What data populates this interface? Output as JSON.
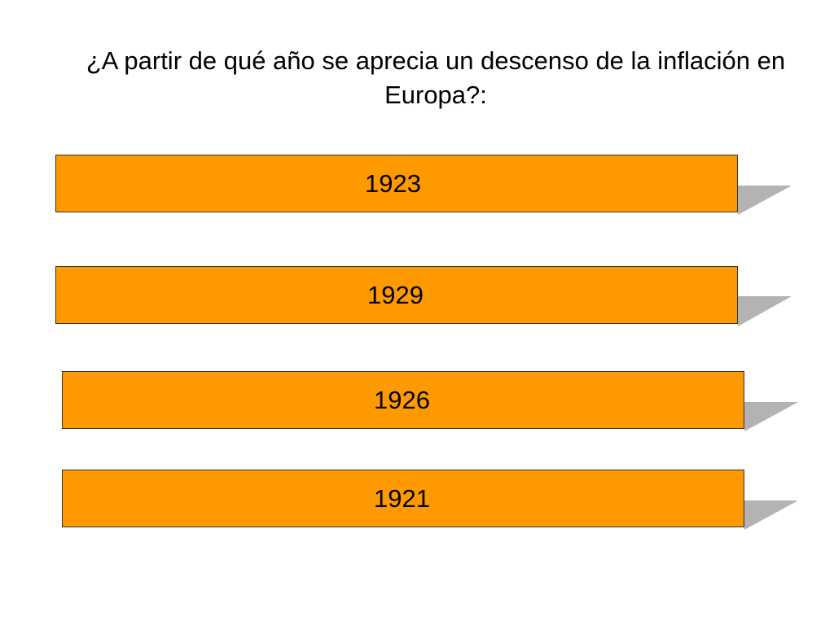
{
  "question": "¿A partir de qué año se aprecia un descenso de la inflación en Europa?:",
  "colors": {
    "bar_fill": "#fe9a00",
    "shadow": "#b3b3b3",
    "bar_border": "#333333",
    "text": "#000000",
    "background": "#ffffff"
  },
  "options": [
    {
      "label": "1923"
    },
    {
      "label": "1929"
    },
    {
      "label": "1926"
    },
    {
      "label": "1921"
    }
  ]
}
